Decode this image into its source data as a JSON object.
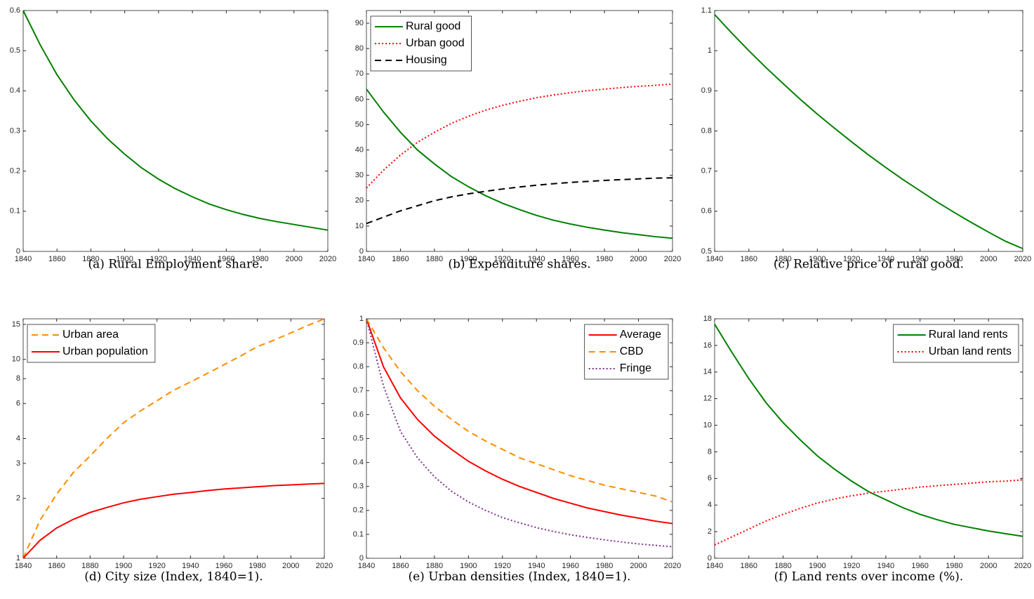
{
  "chart_data": [
    {
      "type": "line",
      "caption": "(a) Rural Employment share.",
      "x": [
        1840,
        1850,
        1860,
        1870,
        1880,
        1890,
        1900,
        1910,
        1920,
        1930,
        1940,
        1950,
        1960,
        1970,
        1980,
        1990,
        2000,
        2010,
        2020
      ],
      "values": [
        0.6,
        0.515,
        0.44,
        0.378,
        0.325,
        0.28,
        0.242,
        0.208,
        0.18,
        0.156,
        0.136,
        0.118,
        0.104,
        0.092,
        0.082,
        0.074,
        0.067,
        0.06,
        0.053
      ],
      "color": "#008000",
      "dash": "solid",
      "xlim": [
        1840,
        2020
      ],
      "xticks": [
        1840,
        1860,
        1880,
        1900,
        1920,
        1940,
        1960,
        1980,
        2000,
        2020
      ],
      "ylim": [
        0,
        0.6
      ],
      "yticks": [
        0,
        0.1,
        0.2,
        0.3,
        0.4,
        0.5,
        0.6
      ]
    },
    {
      "type": "line",
      "caption": "(b) Expenditure shares.",
      "x": [
        1840,
        1850,
        1860,
        1870,
        1880,
        1890,
        1900,
        1910,
        1920,
        1930,
        1940,
        1950,
        1960,
        1970,
        1980,
        1990,
        2000,
        2010,
        2020
      ],
      "series": [
        {
          "name": "Rural good",
          "color": "#008000",
          "dash": "solid",
          "values": [
            64,
            55,
            47,
            40,
            34.5,
            29.5,
            25.5,
            22,
            19,
            16.5,
            14.2,
            12.3,
            10.8,
            9.5,
            8.4,
            7.4,
            6.6,
            5.8,
            5.2
          ]
        },
        {
          "name": "Urban good",
          "color": "#ff0000",
          "dash": "dotted",
          "values": [
            25,
            32,
            38,
            43,
            47,
            50.5,
            53.3,
            55.7,
            57.6,
            59.2,
            60.6,
            61.7,
            62.6,
            63.4,
            64,
            64.6,
            65.1,
            65.5,
            66
          ]
        },
        {
          "name": "Housing",
          "color": "#000000",
          "dash": "dashed",
          "values": [
            11,
            13.5,
            16,
            18,
            20,
            21.5,
            22.7,
            23.7,
            24.6,
            25.4,
            26.1,
            26.7,
            27.2,
            27.6,
            28,
            28.3,
            28.6,
            28.9,
            29
          ]
        }
      ],
      "legend": "upper left",
      "xlim": [
        1840,
        2020
      ],
      "xticks": [
        1840,
        1860,
        1880,
        1900,
        1920,
        1940,
        1960,
        1980,
        2000,
        2020
      ],
      "ylim": [
        0,
        95
      ],
      "yticks": [
        0,
        10,
        20,
        30,
        40,
        50,
        60,
        70,
        80,
        90
      ]
    },
    {
      "type": "line",
      "caption": "(c) Relative price of rural good.",
      "x": [
        1840,
        1850,
        1860,
        1870,
        1880,
        1890,
        1900,
        1910,
        1920,
        1930,
        1940,
        1950,
        1960,
        1970,
        1980,
        1990,
        2000,
        2010,
        2020
      ],
      "values": [
        1.09,
        1.044,
        1.0,
        0.958,
        0.918,
        0.879,
        0.842,
        0.807,
        0.773,
        0.74,
        0.709,
        0.679,
        0.651,
        0.623,
        0.597,
        0.572,
        0.548,
        0.525,
        0.507
      ],
      "color": "#008000",
      "dash": "solid",
      "xlim": [
        1840,
        2020
      ],
      "xticks": [
        1840,
        1860,
        1880,
        1900,
        1920,
        1940,
        1960,
        1980,
        2000,
        2020
      ],
      "ylim": [
        0.5,
        1.1
      ],
      "yticks": [
        0.5,
        0.6,
        0.7,
        0.8,
        0.9,
        1,
        1.1
      ]
    },
    {
      "type": "line",
      "caption": "(d) City size (Index, 1840=1).",
      "x": [
        1840,
        1850,
        1860,
        1870,
        1880,
        1890,
        1900,
        1910,
        1920,
        1930,
        1940,
        1950,
        1960,
        1970,
        1980,
        1990,
        2000,
        2010,
        2020
      ],
      "series": [
        {
          "name": "Urban area",
          "color": "#ff8c00",
          "dash": "dashed",
          "values": [
            1,
            1.55,
            2.1,
            2.7,
            3.27,
            4.0,
            4.8,
            5.5,
            6.2,
            7.0,
            7.7,
            8.5,
            9.4,
            10.4,
            11.6,
            12.5,
            13.6,
            14.8,
            16
          ]
        },
        {
          "name": "Urban population",
          "color": "#ff0000",
          "dash": "solid",
          "values": [
            1,
            1.23,
            1.42,
            1.57,
            1.7,
            1.8,
            1.9,
            1.98,
            2.04,
            2.1,
            2.14,
            2.19,
            2.23,
            2.26,
            2.29,
            2.32,
            2.34,
            2.36,
            2.38
          ]
        }
      ],
      "legend": "upper left",
      "yscale": "log",
      "xlim": [
        1840,
        2020
      ],
      "xticks": [
        1840,
        1860,
        1880,
        1900,
        1920,
        1940,
        1960,
        1980,
        2000,
        2020
      ],
      "ylim": [
        1,
        16
      ],
      "yticks": [
        1,
        2,
        3,
        4,
        6,
        8,
        10,
        15
      ]
    },
    {
      "type": "line",
      "caption": "(e) Urban densities (Index, 1840=1).",
      "x": [
        1840,
        1850,
        1860,
        1870,
        1880,
        1890,
        1900,
        1910,
        1920,
        1930,
        1940,
        1950,
        1960,
        1970,
        1980,
        1990,
        2000,
        2010,
        2020
      ],
      "series": [
        {
          "name": "Average",
          "color": "#ff0000",
          "dash": "solid",
          "values": [
            1,
            0.8,
            0.67,
            0.58,
            0.51,
            0.455,
            0.405,
            0.365,
            0.33,
            0.3,
            0.275,
            0.25,
            0.23,
            0.21,
            0.195,
            0.18,
            0.168,
            0.155,
            0.145
          ]
        },
        {
          "name": "CBD",
          "color": "#ff8c00",
          "dash": "dashed",
          "values": [
            1,
            0.88,
            0.78,
            0.7,
            0.635,
            0.58,
            0.53,
            0.49,
            0.455,
            0.42,
            0.395,
            0.37,
            0.345,
            0.325,
            0.305,
            0.29,
            0.275,
            0.26,
            0.235
          ]
        },
        {
          "name": "Fringe",
          "color": "#7e2f8e",
          "dash": "dotted",
          "values": [
            1,
            0.72,
            0.53,
            0.42,
            0.34,
            0.28,
            0.235,
            0.2,
            0.17,
            0.148,
            0.128,
            0.112,
            0.098,
            0.087,
            0.077,
            0.068,
            0.06,
            0.054,
            0.048
          ]
        }
      ],
      "legend": "upper right",
      "xlim": [
        1840,
        2020
      ],
      "xticks": [
        1840,
        1860,
        1880,
        1900,
        1920,
        1940,
        1960,
        1980,
        2000,
        2020
      ],
      "ylim": [
        0,
        1
      ],
      "yticks": [
        0,
        0.1,
        0.2,
        0.3,
        0.4,
        0.5,
        0.6,
        0.7,
        0.8,
        0.9,
        1
      ]
    },
    {
      "type": "line",
      "caption": "(f) Land rents over income (%).",
      "x": [
        1840,
        1850,
        1860,
        1870,
        1880,
        1890,
        1900,
        1910,
        1920,
        1930,
        1940,
        1950,
        1960,
        1970,
        1980,
        1990,
        2000,
        2010,
        2020
      ],
      "series": [
        {
          "name": "Rural land rents",
          "color": "#008000",
          "dash": "solid",
          "values": [
            17.6,
            15.5,
            13.5,
            11.7,
            10.2,
            8.9,
            7.7,
            6.7,
            5.8,
            5.0,
            4.4,
            3.8,
            3.3,
            2.9,
            2.55,
            2.3,
            2.05,
            1.85,
            1.65
          ]
        },
        {
          "name": "Urban land rents",
          "color": "#ff0000",
          "dash": "dotted",
          "values": [
            1,
            1.6,
            2.2,
            2.8,
            3.3,
            3.75,
            4.15,
            4.45,
            4.7,
            4.9,
            5.05,
            5.2,
            5.35,
            5.45,
            5.55,
            5.65,
            5.75,
            5.8,
            5.9
          ]
        }
      ],
      "legend": "upper right",
      "xlim": [
        1840,
        2020
      ],
      "xticks": [
        1840,
        1860,
        1880,
        1900,
        1920,
        1940,
        1960,
        1980,
        2000,
        2020
      ],
      "ylim": [
        0,
        18
      ],
      "yticks": [
        0,
        2,
        4,
        6,
        8,
        10,
        12,
        14,
        16,
        18
      ]
    }
  ]
}
